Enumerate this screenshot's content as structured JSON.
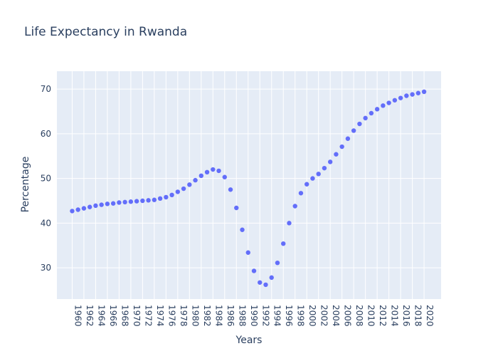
{
  "chart_data": {
    "type": "scatter",
    "title": "Life Expectancy in Rwanda",
    "xlabel": "Years",
    "ylabel": "Percentage",
    "x_tick_step": 2,
    "y_ticks": [
      30,
      40,
      50,
      60,
      70
    ],
    "xlim": [
      1957.4,
      2022.9
    ],
    "ylim": [
      23,
      74
    ],
    "grid": true,
    "legend": "none",
    "colors": {
      "plot_bg": "#e5ecf6",
      "marker": "#636efa",
      "grid": "#ffffff",
      "text": "#2a3f5f"
    },
    "x": [
      1960,
      1961,
      1962,
      1963,
      1964,
      1965,
      1966,
      1967,
      1968,
      1969,
      1970,
      1971,
      1972,
      1973,
      1974,
      1975,
      1976,
      1977,
      1978,
      1979,
      1980,
      1981,
      1982,
      1983,
      1984,
      1985,
      1986,
      1987,
      1988,
      1989,
      1990,
      1991,
      1992,
      1993,
      1994,
      1995,
      1996,
      1997,
      1998,
      1999,
      2000,
      2001,
      2002,
      2003,
      2004,
      2005,
      2006,
      2007,
      2008,
      2009,
      2010,
      2011,
      2012,
      2013,
      2014,
      2015,
      2016,
      2017,
      2018,
      2019,
      2020
    ],
    "y": [
      42.7,
      43.0,
      43.3,
      43.6,
      43.9,
      44.1,
      44.3,
      44.4,
      44.6,
      44.7,
      44.8,
      44.9,
      45.0,
      45.1,
      45.2,
      45.5,
      45.8,
      46.3,
      47.0,
      47.7,
      48.6,
      49.6,
      50.6,
      51.4,
      52.0,
      51.7,
      50.3,
      47.5,
      43.4,
      38.5,
      33.4,
      29.3,
      26.7,
      26.2,
      27.8,
      31.1,
      35.4,
      40.0,
      43.8,
      46.7,
      48.7,
      50.0,
      51.0,
      52.3,
      53.7,
      55.4,
      57.1,
      58.9,
      60.7,
      62.2,
      63.5,
      64.6,
      65.5,
      66.3,
      66.9,
      67.5,
      68.0,
      68.5,
      68.8,
      69.1,
      69.4
    ]
  }
}
